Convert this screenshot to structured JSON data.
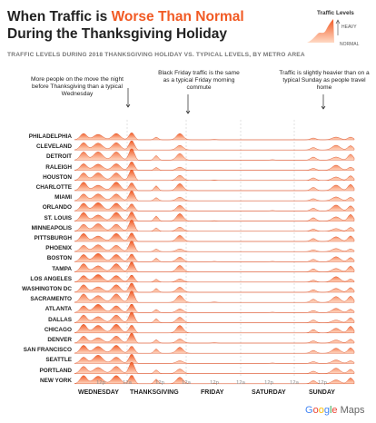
{
  "header": {
    "title_line1_pre": "When Traffic is ",
    "title_line1_highlight": "Worse Than Normal",
    "title_line2": "During the Thanksgiving Holiday",
    "subtitle": "TRAFFIC LEVELS DURING 2018 THANKSGIVING HOLIDAY VS. TYPICAL LEVELS, BY METRO AREA"
  },
  "legend": {
    "title": "Traffic Levels",
    "heavy": "HEAVY",
    "normal": "NORMAL"
  },
  "annotations": [
    {
      "text": "More people on the move the night before Thanksgiving than a typical Wednesday"
    },
    {
      "text": "Black Friday traffic is the same as a typical Friday morning commute"
    },
    {
      "text": "Traffic is slightly heavier than on a typical Sunday as people travel home"
    }
  ],
  "brand": {
    "g": "G",
    "o1": "o",
    "o2": "o",
    "g2": "g",
    "l": "l",
    "e": "e",
    "maps": " Maps"
  },
  "colors": {
    "accent": "#f15a24",
    "fill_top": "#f15a24",
    "fill_bottom": "#ffd9c4"
  },
  "chart_data": {
    "type": "area",
    "title": "When Traffic is Worse Than Normal During the Thanksgiving Holiday",
    "subtitle": "TRAFFIC LEVELS DURING 2018 THANKSGIVING HOLIDAY VS. TYPICAL LEVELS, BY METRO AREA",
    "x_ticks": [
      "12p",
      "12a",
      "12p",
      "12a",
      "12p",
      "12a",
      "12p",
      "12a",
      "12p"
    ],
    "days": [
      "WEDNESDAY",
      "THANKSGIVING",
      "FRIDAY",
      "SATURDAY",
      "SUNDAY"
    ],
    "metros": [
      "PHILADELPHIA",
      "CLEVELAND",
      "DETROIT",
      "RALEIGH",
      "HOUSTON",
      "CHARLOTTE",
      "MIAMI",
      "ORLANDO",
      "ST. LOUIS",
      "MINNEAPOLIS",
      "PITTSBURGH",
      "PHOENIX",
      "BOSTON",
      "TAMPA",
      "LOS ANGELES",
      "WASHINGTON DC",
      "SACRAMENTO",
      "ATLANTA",
      "DALLAS",
      "CHICAGO",
      "DENVER",
      "SAN FRANCISCO",
      "SEATTLE",
      "PORTLAND",
      "NEW YORK"
    ]
  }
}
